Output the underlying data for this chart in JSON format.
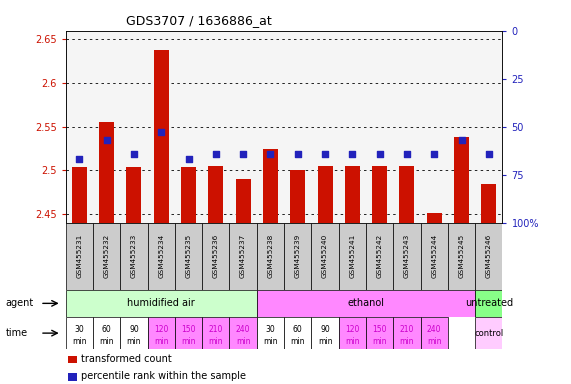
{
  "title": "GDS3707 / 1636886_at",
  "samples": [
    "GSM455231",
    "GSM455232",
    "GSM455233",
    "GSM455234",
    "GSM455235",
    "GSM455236",
    "GSM455237",
    "GSM455238",
    "GSM455239",
    "GSM455240",
    "GSM455241",
    "GSM455242",
    "GSM455243",
    "GSM455244",
    "GSM455245",
    "GSM455246"
  ],
  "transformed_count": [
    2.504,
    2.555,
    2.504,
    2.638,
    2.504,
    2.505,
    2.49,
    2.525,
    2.5,
    2.505,
    2.505,
    2.505,
    2.505,
    2.451,
    2.538,
    2.484
  ],
  "percentile_rank": [
    33,
    43,
    36,
    47,
    33,
    36,
    36,
    36,
    36,
    36,
    36,
    36,
    36,
    36,
    43,
    36
  ],
  "ylim_left": [
    2.44,
    2.66
  ],
  "ylim_right": [
    0,
    100
  ],
  "yticks_left": [
    2.45,
    2.5,
    2.55,
    2.6,
    2.65
  ],
  "yticks_right": [
    0,
    25,
    50,
    75,
    100
  ],
  "bar_color": "#cc1100",
  "dot_color": "#2222bb",
  "agent_groups": [
    {
      "label": "humidified air",
      "start": 0,
      "end": 7,
      "color": "#ccffcc"
    },
    {
      "label": "ethanol",
      "start": 7,
      "end": 15,
      "color": "#ff88ff"
    },
    {
      "label": "untreated",
      "start": 15,
      "end": 16,
      "color": "#88ff88"
    }
  ],
  "time_labels_14": [
    "30\nmin",
    "60\nmin",
    "90\nmin",
    "120\nmin",
    "150\nmin",
    "210\nmin",
    "240\nmin",
    "30\nmin",
    "60\nmin",
    "90\nmin",
    "120\nmin",
    "150\nmin",
    "210\nmin",
    "240\nmin"
  ],
  "time_colors_14": [
    "#ffffff",
    "#ffffff",
    "#ffffff",
    "#ff88ff",
    "#ff88ff",
    "#ff88ff",
    "#ff88ff",
    "#ffffff",
    "#ffffff",
    "#ffffff",
    "#ff88ff",
    "#ff88ff",
    "#ff88ff",
    "#ff88ff"
  ],
  "time_magenta_idx": [
    3,
    4,
    5,
    6,
    10,
    11,
    12,
    13
  ],
  "control_color": "#ffccff",
  "legend_items": [
    {
      "label": "transformed count",
      "color": "#cc1100"
    },
    {
      "label": "percentile rank within the sample",
      "color": "#2222bb"
    }
  ],
  "background_color": "#ffffff",
  "grid_color": "#000000",
  "tick_color_left": "#cc1100",
  "tick_color_right": "#2222bb",
  "sample_bg_color": "#cccccc",
  "plot_bg_color": "#f5f5f5"
}
